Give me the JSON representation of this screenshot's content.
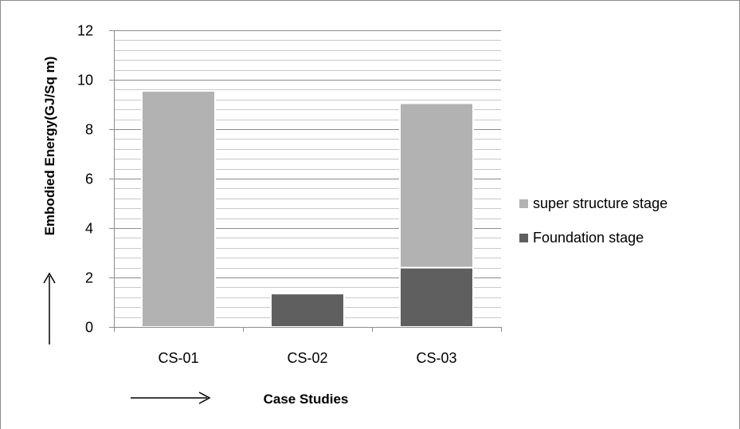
{
  "chart_data": {
    "type": "bar",
    "stacked": true,
    "title": "",
    "xlabel": "Case Studies",
    "ylabel": "Embodied Energy(GJ/Sq m)",
    "categories": [
      "CS-01",
      "CS-02",
      "CS-03"
    ],
    "series": [
      {
        "name": "Foundation stage",
        "values": [
          0,
          1.35,
          2.4
        ],
        "color": "#5f5f5f"
      },
      {
        "name": "super structure stage",
        "values": [
          9.55,
          0,
          6.65
        ],
        "color": "#b2b2b2"
      }
    ],
    "ylim": [
      0,
      12
    ],
    "yticks": [
      "0",
      "2",
      "4",
      "6",
      "8",
      "10",
      "12"
    ],
    "grid": true,
    "legend_position": "right",
    "legend_order": [
      "super structure stage",
      "Foundation stage"
    ]
  }
}
